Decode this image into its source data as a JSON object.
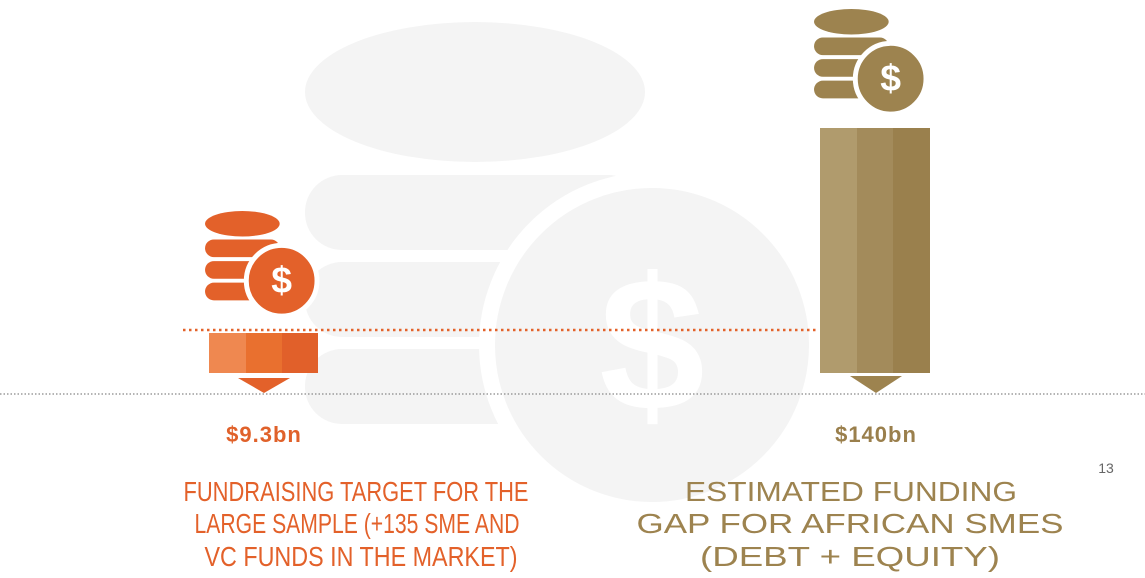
{
  "items": [
    {
      "value": "$9.3bn",
      "description": [
        "FUNDRAISING TARGET FOR THE",
        "LARGE SAMPLE (+135 SME AND",
        "VC FUNDS IN THE MARKET)"
      ]
    },
    {
      "value": "$140bn",
      "description": [
        "ESTIMATED FUNDING",
        "GAP FOR AFRICAN SMES",
        "(DEBT + EQUITY)"
      ]
    }
  ],
  "footnote": "13"
}
